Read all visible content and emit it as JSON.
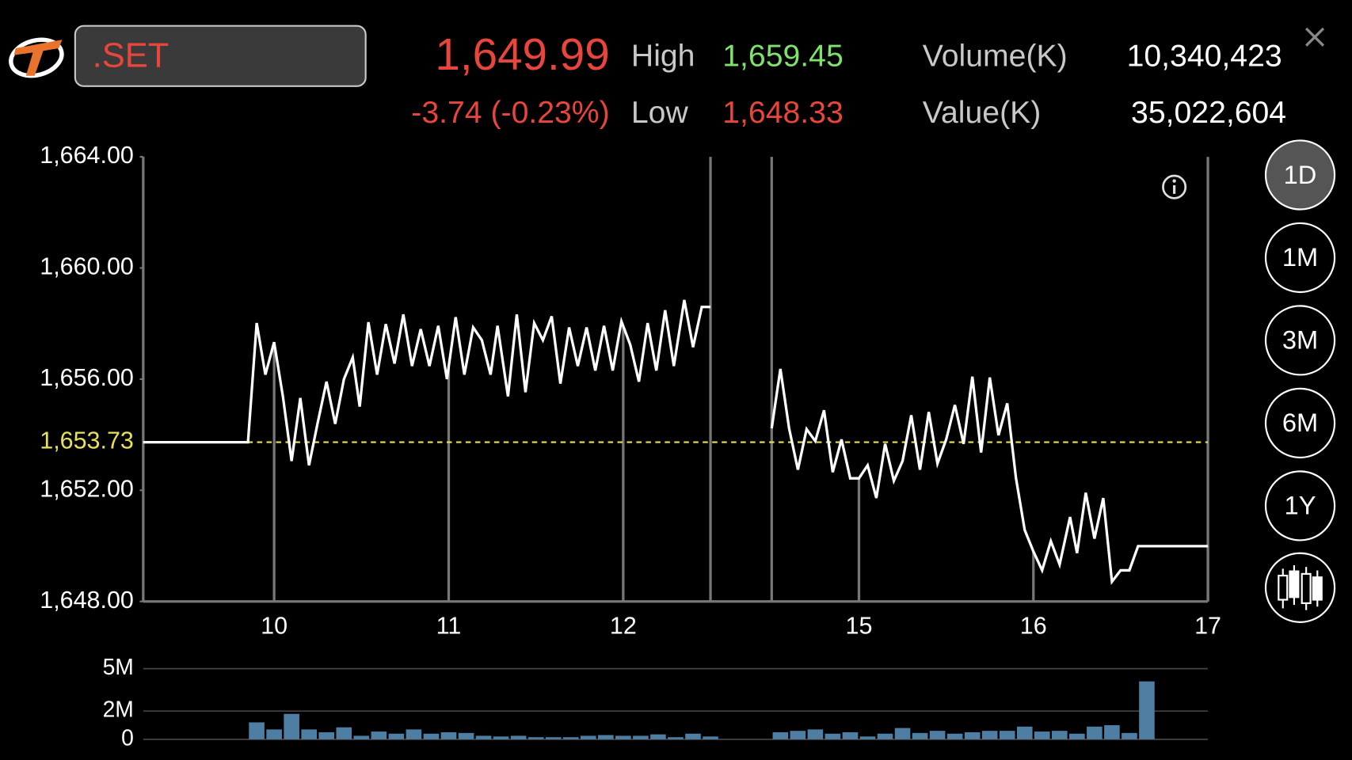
{
  "header": {
    "symbol": ".SET",
    "last": "1,649.99",
    "change": "-3.74 (-0.23%)",
    "high_label": "High",
    "high": "1,659.45",
    "low_label": "Low",
    "low": "1,648.33",
    "volume_label": "Volume(K)",
    "volume": "10,340,423",
    "value_label": "Value(K)",
    "value": "35,022,604"
  },
  "periods": [
    "1D",
    "1M",
    "3M",
    "6M",
    "1Y"
  ],
  "chart_data": [
    {
      "type": "line",
      "xlim": [
        9.25,
        17
      ],
      "x_break": [
        12.5,
        14.5
      ],
      "xticks": [
        10,
        11,
        12,
        15,
        16,
        17
      ],
      "ylim": [
        1648,
        1664
      ],
      "yticks": [
        {
          "value": 1664,
          "label": "1,664.00"
        },
        {
          "value": 1660,
          "label": "1,660.00"
        },
        {
          "value": 1656,
          "label": "1,656.00"
        },
        {
          "value": 1652,
          "label": "1,652.00"
        },
        {
          "value": 1648,
          "label": "1,648.00"
        }
      ],
      "reference": {
        "value": 1653.73,
        "label": "1,653.73",
        "color": "#e8e05a"
      },
      "x": [
        9.25,
        9.85,
        9.9,
        9.95,
        10.0,
        10.05,
        10.1,
        10.15,
        10.2,
        10.25,
        10.3,
        10.35,
        10.4,
        10.45,
        10.49,
        10.54,
        10.59,
        10.64,
        10.69,
        10.74,
        10.79,
        10.84,
        10.89,
        10.94,
        10.99,
        11.04,
        11.09,
        11.14,
        11.19,
        11.24,
        11.28,
        11.34,
        11.39,
        11.44,
        11.49,
        11.54,
        11.59,
        11.64,
        11.69,
        11.74,
        11.79,
        11.84,
        11.89,
        11.94,
        11.99,
        12.04,
        12.09,
        12.14,
        12.19,
        12.24,
        12.29,
        12.35,
        12.4,
        12.45,
        12.5,
        13.5,
        14.5,
        14.55,
        14.6,
        14.65,
        14.7,
        14.75,
        14.8,
        14.85,
        14.9,
        14.95,
        15.0,
        15.05,
        15.1,
        15.15,
        15.2,
        15.25,
        15.3,
        15.35,
        15.4,
        15.45,
        15.5,
        15.55,
        15.6,
        15.65,
        15.7,
        15.75,
        15.8,
        15.85,
        15.9,
        15.95,
        16.0,
        16.05,
        16.1,
        16.15,
        16.21,
        16.25,
        16.3,
        16.35,
        16.4,
        16.45,
        16.5,
        16.55,
        16.6,
        17.0
      ],
      "series": [
        {
          "color": "#ffffff",
          "values": [
            1653.73,
            1653.73,
            1658.02,
            1656.16,
            1657.33,
            1655.38,
            1653.05,
            1655.32,
            1652.9,
            1654.45,
            1655.91,
            1654.39,
            1656.0,
            1656.78,
            1655.01,
            1658.05,
            1656.16,
            1657.98,
            1656.56,
            1658.33,
            1656.47,
            1657.8,
            1656.47,
            1657.92,
            1656.0,
            1658.23,
            1656.16,
            1657.86,
            1657.4,
            1656.16,
            1657.92,
            1655.38,
            1658.33,
            1655.53,
            1658.02,
            1657.4,
            1658.26,
            1655.84,
            1657.86,
            1656.47,
            1657.86,
            1656.31,
            1657.92,
            1656.31,
            1658.08,
            1657.24,
            1655.91,
            1658.02,
            1656.31,
            1658.48,
            1656.47,
            1658.85,
            1657.15,
            1658.6,
            1658.6,
            null,
            1654.23,
            1656.37,
            1654.23,
            1652.74,
            1654.2,
            1653.77,
            1654.88,
            1652.65,
            1653.83,
            1652.43,
            1652.43,
            1652.9,
            1651.72,
            1653.67,
            1652.34,
            1653.05,
            1654.7,
            1652.74,
            1654.82,
            1652.96,
            1653.83,
            1655.07,
            1653.67,
            1656.09,
            1653.36,
            1656.06,
            1653.98,
            1655.13,
            1652.43,
            1650.57,
            1649.8,
            1649.12,
            1650.17,
            1649.33,
            1651.04,
            1649.74,
            1651.91,
            1650.26,
            1651.72,
            1648.71,
            1649.12,
            1649.12,
            1649.99,
            1649.99
          ]
        }
      ]
    },
    {
      "type": "bar",
      "ylim": [
        0,
        5000000
      ],
      "yticks": [
        {
          "value": 5000000,
          "label": "5M"
        },
        {
          "value": 2000000,
          "label": "2M"
        },
        0
      ],
      "x": [
        9.9,
        10.0,
        10.1,
        10.2,
        10.3,
        10.4,
        10.5,
        10.6,
        10.7,
        10.8,
        10.9,
        11.0,
        11.1,
        11.2,
        11.3,
        11.4,
        11.5,
        11.6,
        11.7,
        11.8,
        11.9,
        12.0,
        12.1,
        12.2,
        12.3,
        12.4,
        12.5,
        14.55,
        14.65,
        14.75,
        14.85,
        14.95,
        15.05,
        15.15,
        15.25,
        15.35,
        15.45,
        15.55,
        15.65,
        15.75,
        15.85,
        15.95,
        16.05,
        16.15,
        16.25,
        16.35,
        16.45,
        16.55,
        16.65
      ],
      "color": "#4f7ea3",
      "values": [
        1200000,
        700000,
        1800000,
        700000,
        500000,
        850000,
        250000,
        550000,
        400000,
        700000,
        400000,
        500000,
        450000,
        250000,
        200000,
        250000,
        150000,
        150000,
        150000,
        250000,
        300000,
        250000,
        250000,
        350000,
        150000,
        400000,
        200000,
        500000,
        600000,
        700000,
        400000,
        500000,
        200000,
        400000,
        800000,
        450000,
        600000,
        400000,
        500000,
        600000,
        600000,
        900000,
        550000,
        600000,
        400000,
        900000,
        1000000,
        450000,
        4100000
      ]
    }
  ]
}
